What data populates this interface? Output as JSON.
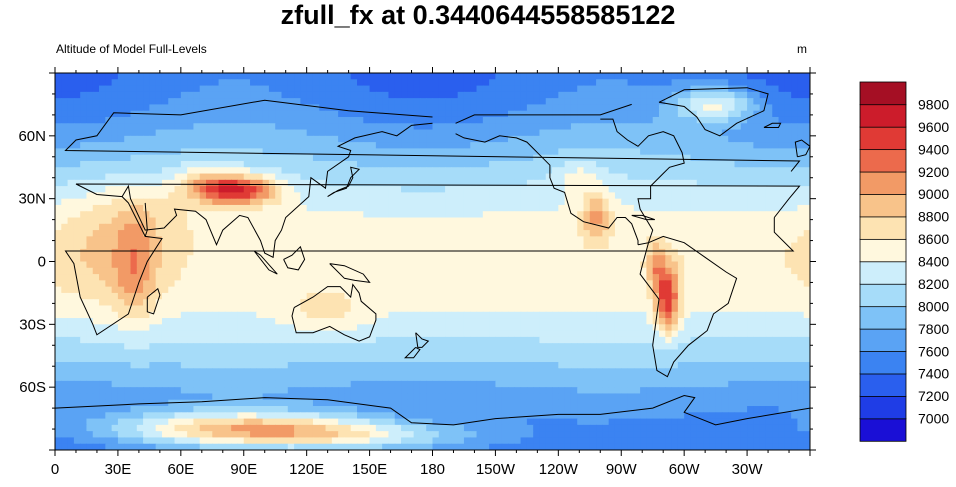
{
  "chart_data": {
    "type": "heatmap",
    "title": "zfull_fx at 0.3440644558585122",
    "subtitle": "Altitude of Model Full-Levels",
    "units": "m",
    "x_ticks": [
      "0",
      "30E",
      "60E",
      "90E",
      "120E",
      "150E",
      "180",
      "150W",
      "120W",
      "90W",
      "60W",
      "30W"
    ],
    "x_tick_lons": [
      0,
      30,
      60,
      90,
      120,
      150,
      180,
      210,
      240,
      270,
      300,
      330
    ],
    "y_ticks": [
      "60N",
      "30N",
      "0",
      "30S",
      "60S"
    ],
    "y_tick_lats": [
      60,
      30,
      0,
      -30,
      -60
    ],
    "lon_range": [
      0,
      360
    ],
    "lat_range": [
      -90,
      90
    ],
    "colorbar": {
      "levels": [
        "7000",
        "7200",
        "7400",
        "7600",
        "7800",
        "8000",
        "8200",
        "8400",
        "8600",
        "8800",
        "9000",
        "9200",
        "9400",
        "9600",
        "9800"
      ],
      "colors": [
        "#1a0fd6",
        "#1f3de6",
        "#2a5fee",
        "#3b83f2",
        "#5aa3f4",
        "#7ec2f7",
        "#a6dcf9",
        "#cdeefb",
        "#fff8de",
        "#fde3b2",
        "#f8c38a",
        "#f29a66",
        "#ec6a4c",
        "#e03a35",
        "#cc1c2b",
        "#a50f24"
      ]
    }
  }
}
